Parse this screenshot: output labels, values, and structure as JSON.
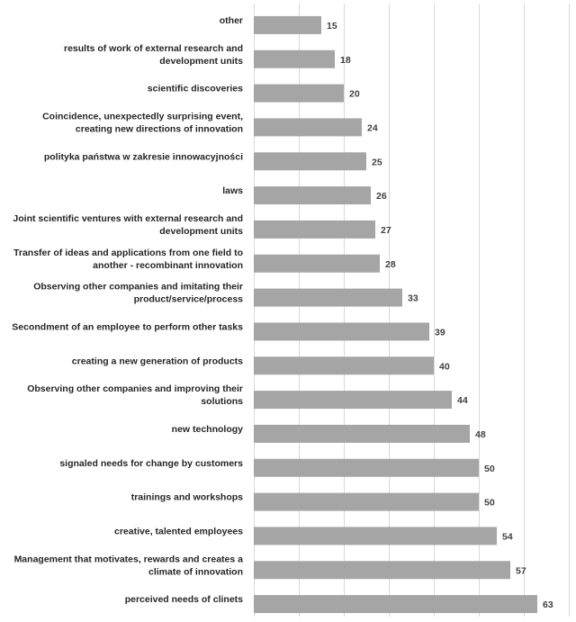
{
  "chart_data": {
    "type": "bar",
    "orientation": "horizontal",
    "categories": [
      "other",
      "results of work of external research and development units",
      "scientific discoveries",
      "Coincidence, unexpectedly surprising event, creating new directions of innovation",
      "polityka państwa w zakresie innowacyjności",
      "laws",
      "Joint scientific ventures with external research and development units",
      "Transfer of ideas and applications from one field to another - recombinant innovation",
      "Observing other companies and imitating their product/service/process",
      "Secondment of an employee to perform other tasks",
      "creating a new generation of products",
      "Observing other companies and improving their solutions",
      "new technology",
      "signaled needs for change by customers",
      "trainings and workshops",
      "creative, talented employees",
      "Management that motivates, rewards and creates a climate of innovation",
      "perceived needs of clinets"
    ],
    "label_lines": [
      [
        "other"
      ],
      [
        "results of work of external research and",
        "development units"
      ],
      [
        "scientific discoveries"
      ],
      [
        "Coincidence, unexpectedly surprising event,",
        "creating new directions of innovation"
      ],
      [
        "polityka państwa w zakresie innowacyjności"
      ],
      [
        "laws"
      ],
      [
        "Joint scientific ventures with external research and",
        "development units"
      ],
      [
        "Transfer of ideas and applications from one field to",
        "another - recombinant innovation"
      ],
      [
        "Observing other companies and imitating their",
        "product/service/process"
      ],
      [
        "Secondment of an employee to perform other tasks"
      ],
      [
        "creating a new generation of products"
      ],
      [
        "Observing other companies and improving their",
        "solutions"
      ],
      [
        "new technology"
      ],
      [
        "signaled needs for change by customers"
      ],
      [
        "trainings and workshops"
      ],
      [
        "creative, talented employees"
      ],
      [
        "Management that motivates, rewards and creates a",
        "climate of innovation"
      ],
      [
        "perceived needs of clinets"
      ]
    ],
    "values": [
      15,
      18,
      20,
      24,
      25,
      26,
      27,
      28,
      33,
      39,
      40,
      44,
      48,
      50,
      50,
      54,
      57,
      63
    ],
    "xlim": [
      0,
      70
    ],
    "grid_step": 10,
    "grid": true,
    "bar_color": "#a5a5a5",
    "grid_color": "#d9d9d9",
    "data_labels": true,
    "legend": "none",
    "title": "",
    "xlabel": "",
    "ylabel": ""
  }
}
